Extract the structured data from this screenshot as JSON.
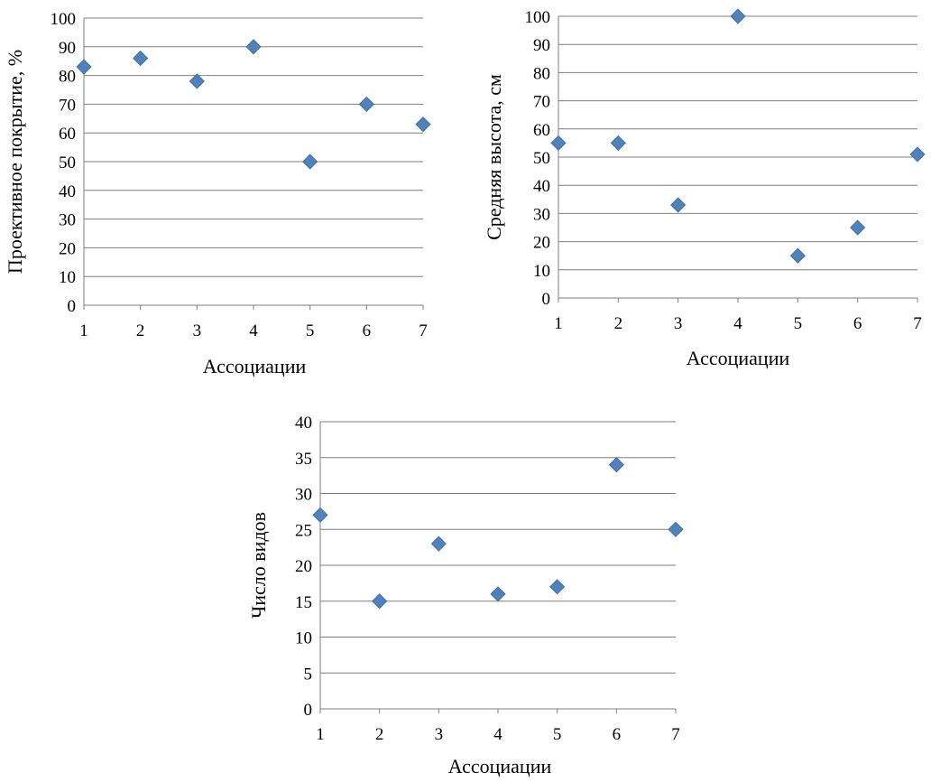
{
  "chart_data": [
    {
      "type": "scatter",
      "xlabel": "Ассоциации",
      "ylabel": "Проективное покрытие, %",
      "x": [
        1,
        2,
        3,
        4,
        5,
        6,
        7
      ],
      "y": [
        83,
        86,
        78,
        90,
        50,
        70,
        63
      ],
      "xlim": [
        1,
        7
      ],
      "ylim": [
        0,
        100
      ],
      "yticks": [
        "0",
        "10",
        "20",
        "30",
        "40",
        "50",
        "60",
        "70",
        "80",
        "90",
        "100"
      ],
      "xticks": [
        "1",
        "2",
        "3",
        "4",
        "5",
        "6",
        "7"
      ],
      "grid": "horizontal",
      "marker": "diamond",
      "color": "#4f81bd"
    },
    {
      "type": "scatter",
      "xlabel": "Ассоциации",
      "ylabel": "Средняя высота, см",
      "x": [
        1,
        2,
        3,
        4,
        5,
        6,
        7
      ],
      "y": [
        55,
        55,
        33,
        100,
        15,
        25,
        51
      ],
      "xlim": [
        1,
        7
      ],
      "ylim": [
        0,
        100
      ],
      "yticks": [
        "0",
        "10",
        "20",
        "30",
        "40",
        "50",
        "60",
        "70",
        "80",
        "90",
        "100"
      ],
      "xticks": [
        "1",
        "2",
        "3",
        "4",
        "5",
        "6",
        "7"
      ],
      "grid": "horizontal",
      "marker": "diamond",
      "color": "#4f81bd"
    },
    {
      "type": "scatter",
      "xlabel": "Ассоциации",
      "ylabel": "Число видов",
      "x": [
        1,
        2,
        3,
        4,
        5,
        6,
        7
      ],
      "y": [
        27,
        15,
        23,
        16,
        17,
        34,
        25
      ],
      "xlim": [
        1,
        7
      ],
      "ylim": [
        0,
        40
      ],
      "yticks": [
        "0",
        "5",
        "10",
        "15",
        "20",
        "25",
        "30",
        "35",
        "40"
      ],
      "xticks": [
        "1",
        "2",
        "3",
        "4",
        "5",
        "6",
        "7"
      ],
      "grid": "horizontal",
      "marker": "diamond",
      "color": "#4f81bd"
    }
  ]
}
